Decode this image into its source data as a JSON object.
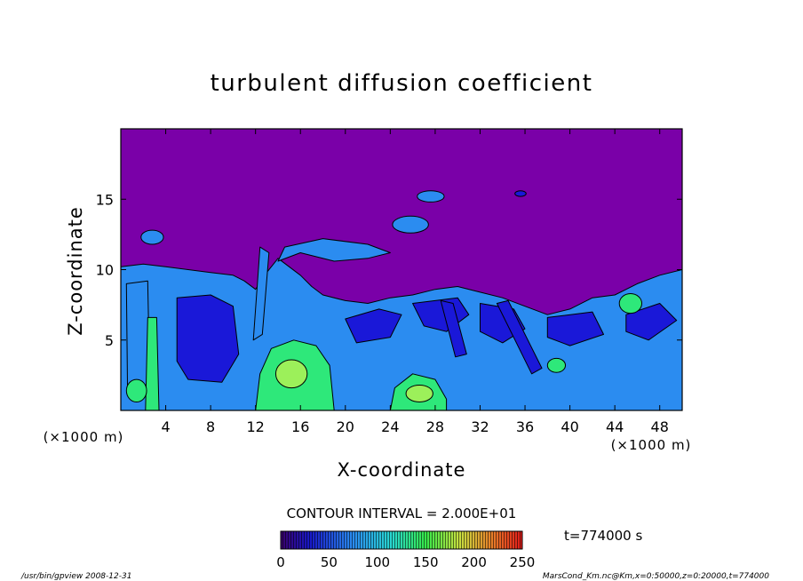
{
  "chart_data": {
    "type": "heatmap",
    "title": "turbulent diffusion coefficient",
    "xlabel": "X-coordinate",
    "ylabel": "Z-coordinate",
    "x_unit": "(×1000 m)",
    "z_unit": "(×1000 m)",
    "xlim": [
      0,
      50
    ],
    "ylim": [
      0,
      20
    ],
    "x_ticks": [
      4,
      8,
      12,
      16,
      20,
      24,
      28,
      32,
      36,
      40,
      44,
      48
    ],
    "y_ticks": [
      5,
      10,
      15
    ],
    "contour_interval": "CONTOUR INTERVAL = 2.000E+01",
    "colorbar": {
      "min": 0,
      "max": 250,
      "ticks": [
        0,
        50,
        100,
        150,
        200,
        250
      ]
    },
    "time_label": "t=774000 s",
    "footer_left": "/usr/bin/gpview   2008-12-31",
    "footer_right": "MarsCond_Km.nc@Km,x=0:50000,z=0:20000,t=774000",
    "colors": {
      "background": "#7a00a8",
      "low": "#1a18d8",
      "mid": "#2b8cf0",
      "high": "#2ee87a",
      "peak": "#9cf05a"
    }
  }
}
